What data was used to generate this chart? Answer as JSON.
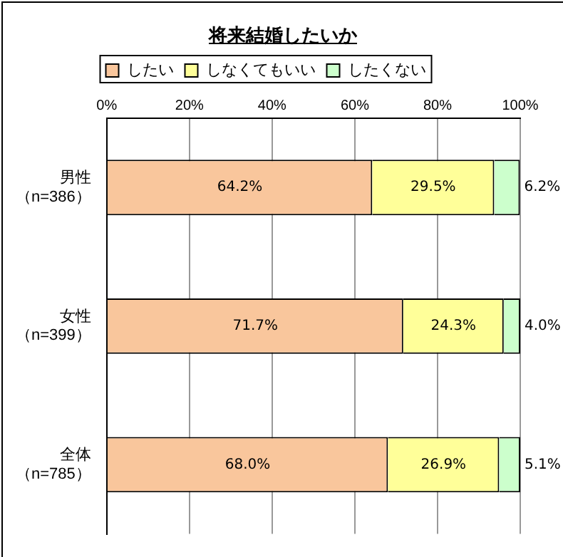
{
  "chart_data": {
    "type": "bar",
    "title": "将来結婚したいか",
    "orientation": "horizontal",
    "stacked": true,
    "categories": [
      "男性（n=386）",
      "女性（n=399）",
      "全体（n=785）"
    ],
    "series": [
      {
        "name": "したい",
        "color": "#f9c69c",
        "values": [
          64.2,
          71.7,
          68.0
        ],
        "value_labels": [
          "64.2%",
          "71.7%",
          "68.0%"
        ]
      },
      {
        "name": "しなくてもいい",
        "color": "#ffff99",
        "values": [
          29.5,
          24.3,
          26.9
        ],
        "value_labels": [
          "29.5%",
          "24.3%",
          "26.9%"
        ]
      },
      {
        "name": "したくない",
        "color": "#ccffcc",
        "values": [
          6.2,
          4.0,
          5.1
        ],
        "value_labels": [
          "6.2%",
          "4.0%",
          "5.1%"
        ]
      }
    ],
    "xlim": [
      0,
      100
    ],
    "xticks": [
      {
        "value": 0,
        "label": "0%"
      },
      {
        "value": 20,
        "label": "20%"
      },
      {
        "value": 40,
        "label": "40%"
      },
      {
        "value": 60,
        "label": "60%"
      },
      {
        "value": 80,
        "label": "80%"
      },
      {
        "value": 100,
        "label": "100%"
      }
    ],
    "grid": "x",
    "legend": "top"
  }
}
